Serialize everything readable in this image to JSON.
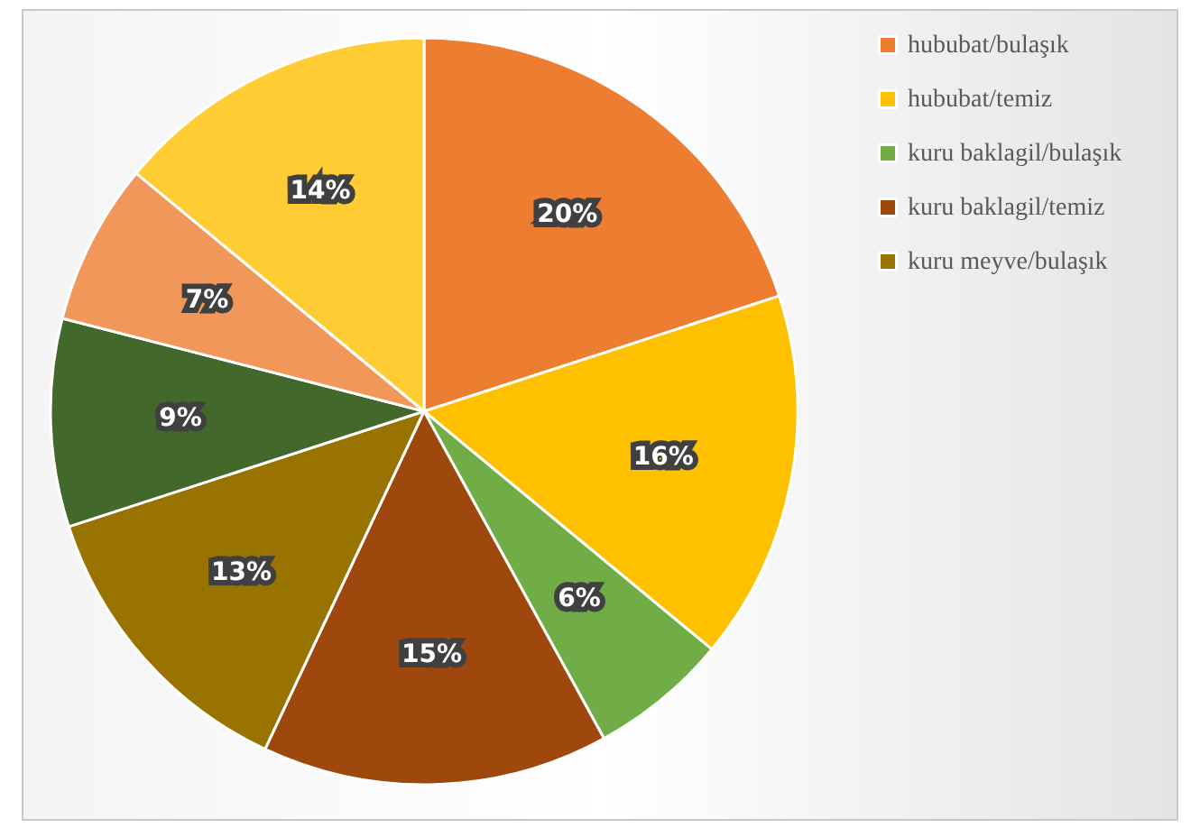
{
  "chart_data": {
    "type": "pie",
    "categories": [
      "hububat/bulaşık",
      "hububat/temiz",
      "kuru baklagil/bulaşık",
      "kuru baklagil/temiz",
      "kuru meyve/bulaşık",
      null,
      null,
      null
    ],
    "values": [
      20,
      16,
      6,
      15,
      13,
      9,
      7,
      14
    ],
    "value_labels": [
      "20%",
      "16%",
      "6%",
      "15%",
      "13%",
      "9%",
      "7%",
      "14%"
    ],
    "colors": [
      "#ed7d31",
      "#ffc000",
      "#70ad47",
      "#9e480e",
      "#997300",
      "#43682b",
      "#f1975a",
      "#ffcd33"
    ],
    "legend": "right"
  }
}
